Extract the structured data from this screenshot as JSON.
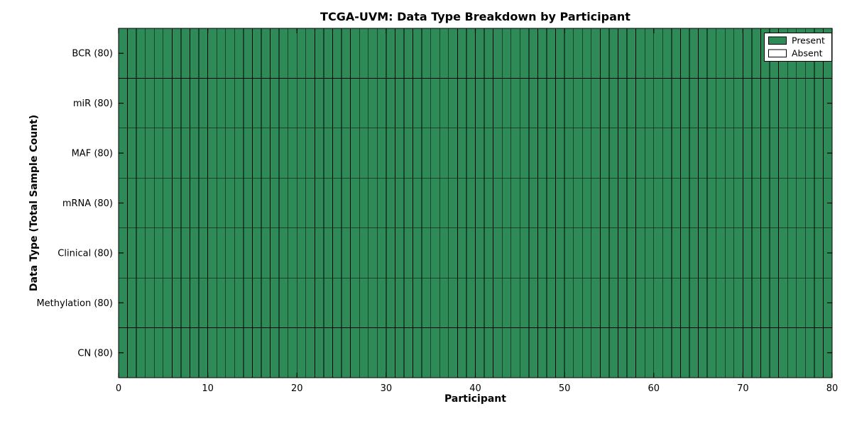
{
  "chart_data": {
    "type": "heatmap",
    "title": "TCGA-UVM: Data Type Breakdown by Participant",
    "xlabel": "Participant",
    "ylabel": "Data Type (Total Sample Count)",
    "participants": {
      "count": 80
    },
    "x_axis": {
      "min": 0,
      "max": 80,
      "ticks": [
        0,
        10,
        20,
        30,
        40,
        50,
        60,
        70,
        80
      ]
    },
    "rows": [
      {
        "label": "BCR (80)",
        "data_type": "BCR",
        "total_samples": 80,
        "present": 80,
        "absent": 0
      },
      {
        "label": "miR (80)",
        "data_type": "miR",
        "total_samples": 80,
        "present": 80,
        "absent": 0
      },
      {
        "label": "MAF (80)",
        "data_type": "MAF",
        "total_samples": 80,
        "present": 80,
        "absent": 0
      },
      {
        "label": "mRNA (80)",
        "data_type": "mRNA",
        "total_samples": 80,
        "present": 80,
        "absent": 0
      },
      {
        "label": "Clinical (80)",
        "data_type": "Clinical",
        "total_samples": 80,
        "present": 80,
        "absent": 0
      },
      {
        "label": "Methylation (80)",
        "data_type": "Methylation",
        "total_samples": 80,
        "present": 80,
        "absent": 0
      },
      {
        "label": "CN (80)",
        "data_type": "CN",
        "total_samples": 80,
        "present": 80,
        "absent": 0
      }
    ],
    "legend": {
      "position": "upper-right",
      "entries": [
        {
          "label": "Present",
          "color": "#2e8b57"
        },
        {
          "label": "Absent",
          "color": "#ffffff"
        }
      ]
    },
    "colors": {
      "present": "#2e8b57",
      "absent": "#ffffff",
      "cell_edge": "#000000",
      "frame": "#000000",
      "background": "#ffffff"
    },
    "layout_hints": {
      "grid": "cell-borders",
      "ticks": "inward-all-sides"
    }
  }
}
